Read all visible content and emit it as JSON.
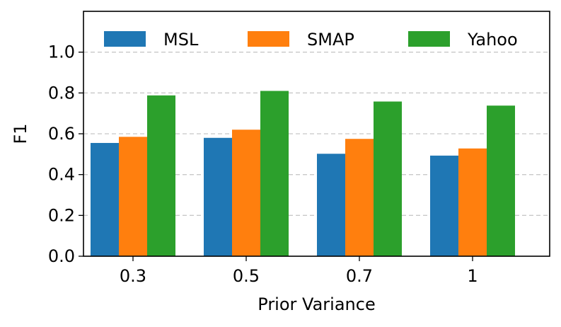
{
  "chart_data": {
    "type": "bar",
    "title": "",
    "xlabel": "Prior Variance",
    "ylabel": "F1",
    "categories": [
      "0.3",
      "0.5",
      "0.7",
      "1"
    ],
    "series": [
      {
        "name": "MSL",
        "color": "#1f77b4",
        "values": [
          0.555,
          0.58,
          0.502,
          0.493
        ]
      },
      {
        "name": "SMAP",
        "color": "#ff7f0e",
        "values": [
          0.585,
          0.62,
          0.575,
          0.528
        ]
      },
      {
        "name": "Yahoo",
        "color": "#2ca02c",
        "values": [
          0.788,
          0.81,
          0.758,
          0.738
        ]
      }
    ],
    "ylim": [
      0,
      1.2
    ],
    "yticks": [
      0.0,
      0.2,
      0.4,
      0.6,
      0.8,
      1.0
    ],
    "ytick_labels": [
      "0.0",
      "0.2",
      "0.4",
      "0.6",
      "0.8",
      "1.0"
    ],
    "grid": "y-dashed",
    "legend_position": "top"
  }
}
